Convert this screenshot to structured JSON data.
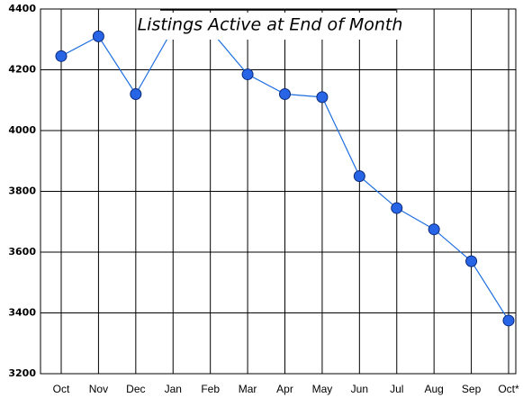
{
  "chart_data": {
    "type": "line",
    "title": "Listings Active at End of Month",
    "categories": [
      "Oct",
      "Nov",
      "Dec",
      "Jan",
      "Feb",
      "Mar",
      "Apr",
      "May",
      "Jun",
      "Jul",
      "Aug",
      "Sep",
      "Oct*"
    ],
    "values": [
      4245,
      4310,
      4120,
      4335,
      4330,
      4185,
      4120,
      4110,
      3850,
      3745,
      3675,
      3570,
      3375
    ],
    "color": "#1f6fe0",
    "marker_color": "#2864e6",
    "ylim": [
      3200,
      4400
    ],
    "yticks": [
      3200,
      3400,
      3600,
      3800,
      4000,
      4200,
      4400
    ],
    "grid": true
  }
}
